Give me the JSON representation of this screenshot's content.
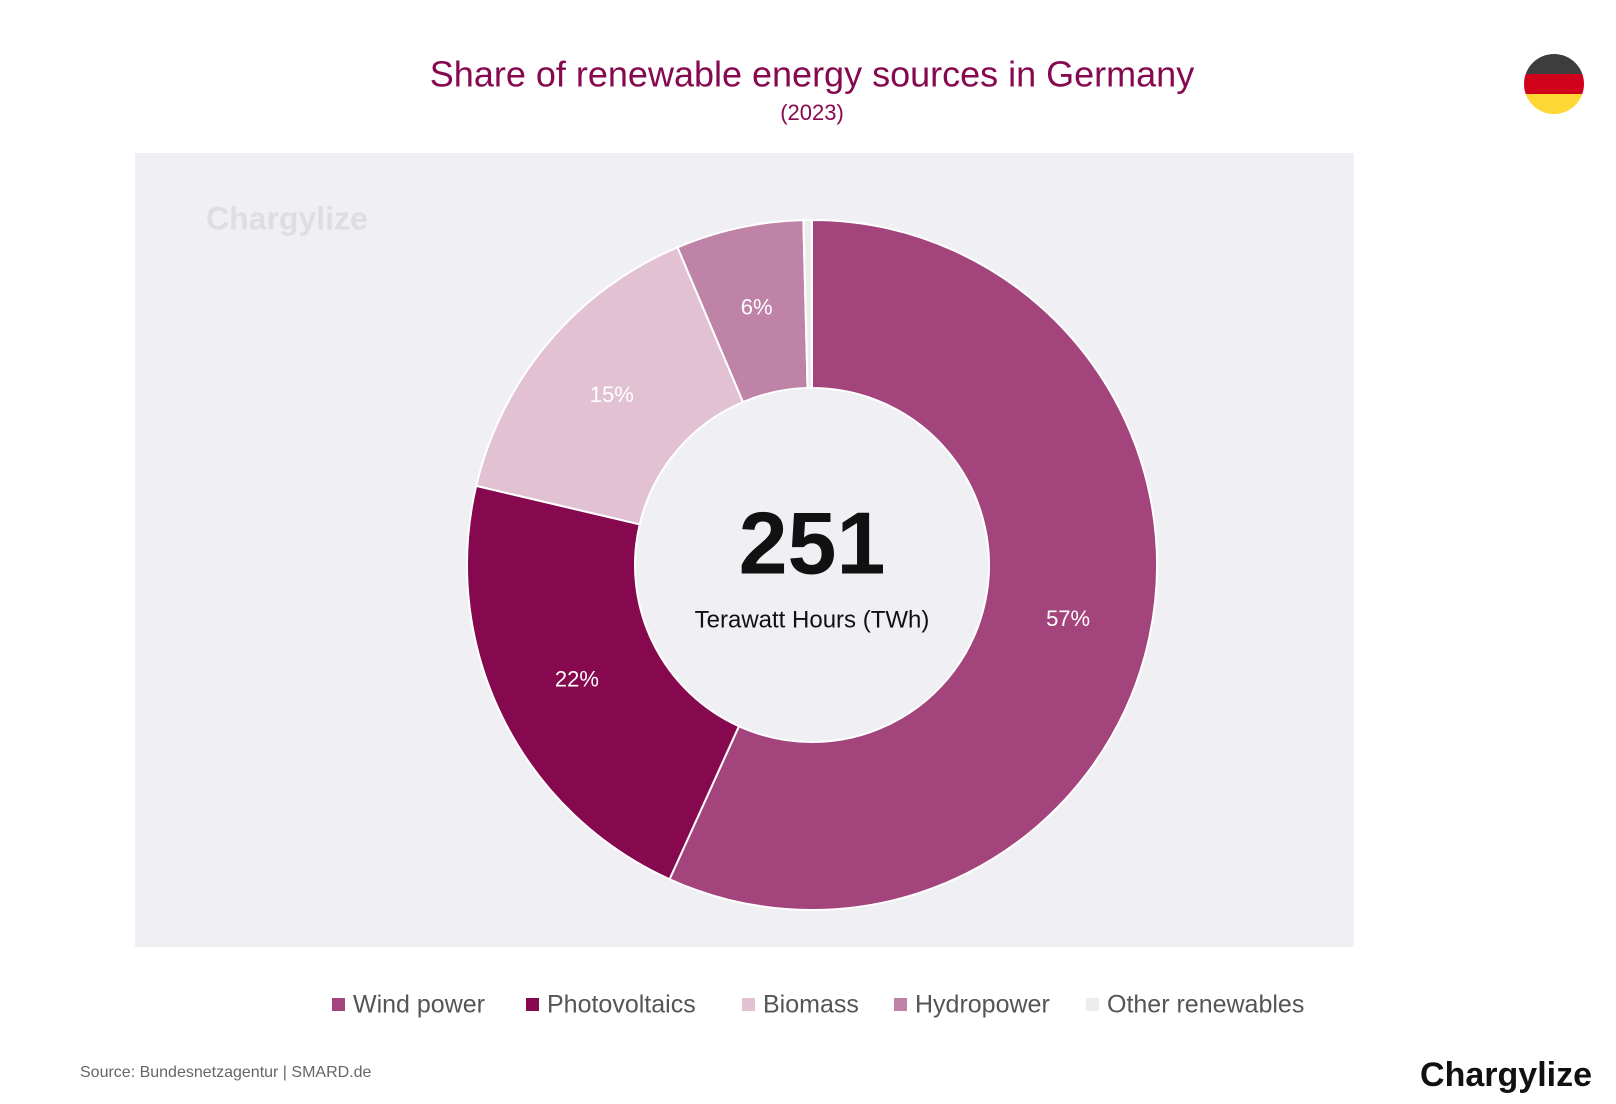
{
  "chart_data": {
    "type": "donut",
    "title": "Share of renewable energy sources in Germany",
    "subtitle": "(2023)",
    "watermark": "Chargylize",
    "center_value": "251",
    "center_label": "Terawatt Hours (TWh)",
    "categories": [
      "Wind power",
      "Photovoltaics",
      "Biomass",
      "Hydropower",
      "Other renewables"
    ],
    "values": [
      57,
      22,
      15,
      6,
      0.4
    ],
    "value_labels": [
      "57%",
      "22%",
      "15%",
      "6%",
      null
    ],
    "colors": [
      "#a3447c",
      "#86094f",
      "#e2c1d3",
      "#c083a8",
      "#ececec"
    ],
    "source": "Source: Bundesnetzagentur | SMARD.de",
    "brand": "Chargylize"
  }
}
